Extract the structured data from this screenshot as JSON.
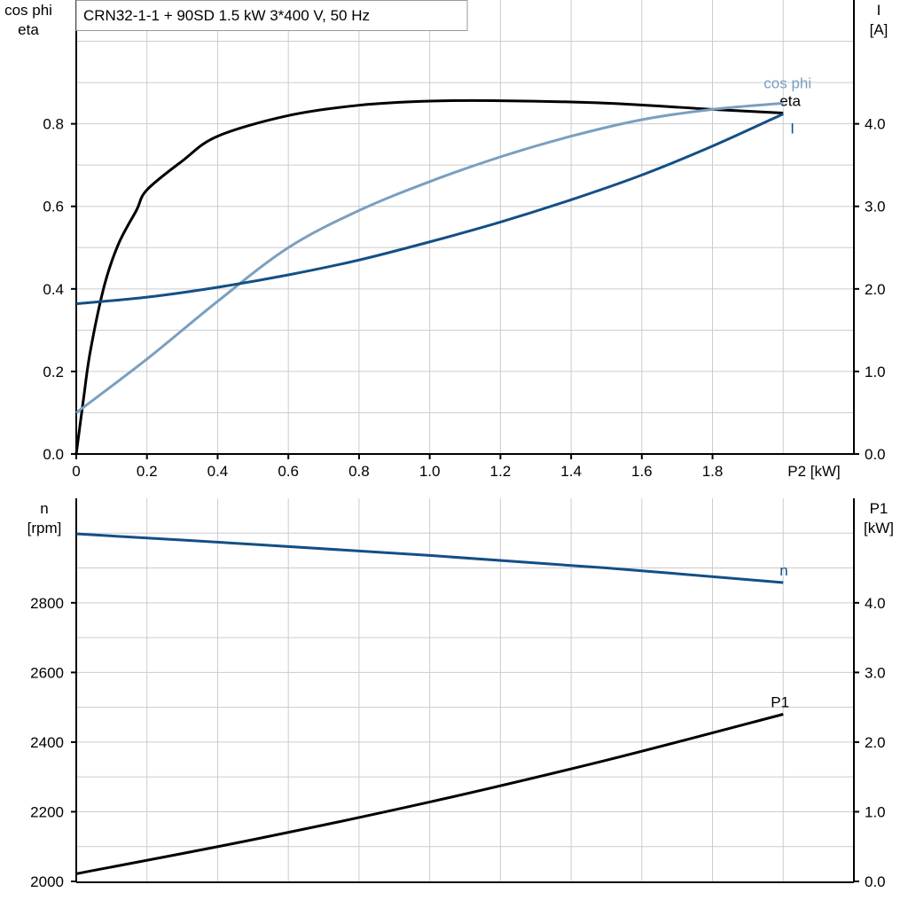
{
  "chart_data": [
    {
      "type": "line",
      "title": "CRN32-1-1 + 90SD   1.5 kW   3*400 V, 50 Hz",
      "xlabel": "P2 [kW]",
      "ylabel_left": [
        "cos phi",
        "eta"
      ],
      "ylabel_right": [
        "I",
        "[A]"
      ],
      "xlim": [
        0,
        2.2
      ],
      "ylim_left": [
        0,
        1.1
      ],
      "ylim_right": [
        0,
        5.5
      ],
      "xticks": [
        "0",
        "0.2",
        "0.4",
        "0.6",
        "0.8",
        "1.0",
        "1.2",
        "1.4",
        "1.6",
        "1.8"
      ],
      "yticks_left": [
        "0.0",
        "0.2",
        "0.4",
        "0.6",
        "0.8"
      ],
      "yticks_right": [
        "0.0",
        "1.0",
        "2.0",
        "3.0",
        "4.0"
      ],
      "grid": true,
      "series": [
        {
          "name": "eta",
          "axis": "left",
          "color": "#000000",
          "x": [
            0,
            0.02,
            0.04,
            0.08,
            0.12,
            0.17,
            0.2,
            0.3,
            0.4,
            0.6,
            0.8,
            1.0,
            1.2,
            1.5,
            1.8,
            2.0
          ],
          "y": [
            0,
            0.13,
            0.25,
            0.41,
            0.51,
            0.59,
            0.64,
            0.71,
            0.77,
            0.82,
            0.845,
            0.855,
            0.856,
            0.85,
            0.835,
            0.826
          ]
        },
        {
          "name": "cos phi",
          "axis": "left",
          "color": "#7a9fc0",
          "x": [
            0,
            0.2,
            0.4,
            0.6,
            0.8,
            1.0,
            1.2,
            1.4,
            1.6,
            1.8,
            2.0
          ],
          "y": [
            0.1,
            0.23,
            0.37,
            0.5,
            0.59,
            0.66,
            0.72,
            0.77,
            0.81,
            0.835,
            0.85
          ]
        },
        {
          "name": "I",
          "axis": "right",
          "color": "#134f85",
          "x": [
            0,
            0.2,
            0.4,
            0.6,
            0.8,
            1.0,
            1.2,
            1.4,
            1.6,
            1.8,
            2.0
          ],
          "y": [
            1.82,
            1.9,
            2.02,
            2.17,
            2.35,
            2.57,
            2.81,
            3.08,
            3.38,
            3.73,
            4.12
          ]
        }
      ]
    },
    {
      "type": "line",
      "xlim": [
        0,
        2.2
      ],
      "ylabel_left": [
        "n",
        "[rpm]"
      ],
      "ylabel_right": [
        "P1",
        "[kW]"
      ],
      "ylim_left": [
        2000,
        3100
      ],
      "ylim_right": [
        0,
        5.5
      ],
      "yticks_left": [
        "2000",
        "2200",
        "2400",
        "2600",
        "2800"
      ],
      "yticks_right": [
        "0.0",
        "1.0",
        "2.0",
        "3.0",
        "4.0"
      ],
      "grid": true,
      "series": [
        {
          "name": "n",
          "axis": "left",
          "color": "#134f85",
          "x": [
            0,
            0.5,
            1.0,
            1.5,
            2.0
          ],
          "y": [
            2998,
            2968,
            2936,
            2900,
            2858
          ]
        },
        {
          "name": "P1",
          "axis": "right",
          "color": "#000000",
          "x": [
            0,
            0.5,
            1.0,
            1.5,
            2.0
          ],
          "y": [
            0.11,
            0.6,
            1.14,
            1.74,
            2.4
          ]
        }
      ]
    }
  ]
}
